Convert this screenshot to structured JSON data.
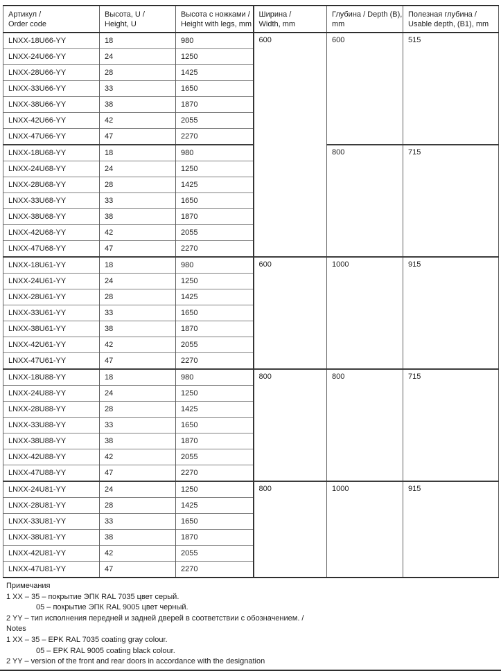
{
  "page": {
    "background_color": "#ffffff",
    "text_color": "#1c1c1c",
    "rule_color": "#2e2e2e"
  },
  "table": {
    "headers": [
      {
        "ru": "Артикул /",
        "en": "Order code"
      },
      {
        "ru": "Высота, U /",
        "en": "Height, U"
      },
      {
        "ru": "Высота с ножками /",
        "en": "Height with legs, mm"
      },
      {
        "ru": "Ширина /",
        "en": "Width, mm"
      },
      {
        "ru": "Глубина / Depth (B),",
        "en": "mm"
      },
      {
        "ru": "Полезная глубина /",
        "en": "Usable depth, (B1), mm"
      }
    ],
    "rows": [
      {
        "code": "LNXX-18U66-YY",
        "u": "18",
        "legs": "980"
      },
      {
        "code": "LNXX-24U66-YY",
        "u": "24",
        "legs": "1250"
      },
      {
        "code": "LNXX-28U66-YY",
        "u": "28",
        "legs": "1425"
      },
      {
        "code": "LNXX-33U66-YY",
        "u": "33",
        "legs": "1650"
      },
      {
        "code": "LNXX-38U66-YY",
        "u": "38",
        "legs": "1870"
      },
      {
        "code": "LNXX-42U66-YY",
        "u": "42",
        "legs": "2055"
      },
      {
        "code": "LNXX-47U66-YY",
        "u": "47",
        "legs": "2270"
      },
      {
        "code": "LNXX-18U68-YY",
        "u": "18",
        "legs": "980"
      },
      {
        "code": "LNXX-24U68-YY",
        "u": "24",
        "legs": "1250"
      },
      {
        "code": "LNXX-28U68-YY",
        "u": "28",
        "legs": "1425"
      },
      {
        "code": "LNXX-33U68-YY",
        "u": "33",
        "legs": "1650"
      },
      {
        "code": "LNXX-38U68-YY",
        "u": "38",
        "legs": "1870"
      },
      {
        "code": "LNXX-42U68-YY",
        "u": "42",
        "legs": "2055"
      },
      {
        "code": "LNXX-47U68-YY",
        "u": "47",
        "legs": "2270"
      },
      {
        "code": "LNXX-18U61-YY",
        "u": "18",
        "legs": "980"
      },
      {
        "code": "LNXX-24U61-YY",
        "u": "24",
        "legs": "1250"
      },
      {
        "code": "LNXX-28U61-YY",
        "u": "28",
        "legs": "1425"
      },
      {
        "code": "LNXX-33U61-YY",
        "u": "33",
        "legs": "1650"
      },
      {
        "code": "LNXX-38U61-YY",
        "u": "38",
        "legs": "1870"
      },
      {
        "code": "LNXX-42U61-YY",
        "u": "42",
        "legs": "2055"
      },
      {
        "code": "LNXX-47U61-YY",
        "u": "47",
        "legs": "2270"
      },
      {
        "code": "LNXX-18U88-YY",
        "u": "18",
        "legs": "980"
      },
      {
        "code": "LNXX-24U88-YY",
        "u": "24",
        "legs": "1250"
      },
      {
        "code": "LNXX-28U88-YY",
        "u": "28",
        "legs": "1425"
      },
      {
        "code": "LNXX-33U88-YY",
        "u": "33",
        "legs": "1650"
      },
      {
        "code": "LNXX-38U88-YY",
        "u": "38",
        "legs": "1870"
      },
      {
        "code": "LNXX-42U88-YY",
        "u": "42",
        "legs": "2055"
      },
      {
        "code": "LNXX-47U88-YY",
        "u": "47",
        "legs": "2270"
      },
      {
        "code": "LNXX-24U81-YY",
        "u": "24",
        "legs": "1250"
      },
      {
        "code": "LNXX-28U81-YY",
        "u": "28",
        "legs": "1425"
      },
      {
        "code": "LNXX-33U81-YY",
        "u": "33",
        "legs": "1650"
      },
      {
        "code": "LNXX-38U81-YY",
        "u": "38",
        "legs": "1870"
      },
      {
        "code": "LNXX-42U81-YY",
        "u": "42",
        "legs": "2055"
      },
      {
        "code": "LNXX-47U81-YY",
        "u": "47",
        "legs": "2270"
      }
    ],
    "width_cells": [
      {
        "value": "600",
        "span": 14
      },
      {
        "value": "600",
        "span": 7
      },
      {
        "value": "800",
        "span": 7
      },
      {
        "value": "800",
        "span": 6
      }
    ],
    "depth_cells": [
      {
        "value": "600",
        "span": 7
      },
      {
        "value": "800",
        "span": 7
      },
      {
        "value": "1000",
        "span": 7
      },
      {
        "value": "800",
        "span": 7
      },
      {
        "value": "1000",
        "span": 6
      }
    ],
    "usable_cells": [
      {
        "value": "515",
        "span": 7
      },
      {
        "value": "715",
        "span": 7
      },
      {
        "value": "915",
        "span": 7
      },
      {
        "value": "715",
        "span": 7
      },
      {
        "value": "915",
        "span": 6
      }
    ]
  },
  "notes": {
    "lines": [
      {
        "text": "Примечания",
        "indent": 0
      },
      {
        "text": "1 XX – 35 – покрытие ЭПК RAL 7035 цвет серый.",
        "indent": 0
      },
      {
        "text": "05 – покрытие ЭПК RAL 9005 цвет черный.",
        "indent": 1
      },
      {
        "text": "2 YY – тип исполнения передней и задней дверей в соответствии с обозначением. /",
        "indent": 0
      },
      {
        "text": "Notes",
        "indent": 0
      },
      {
        "text": "1 XX – 35 – EPK RAL 7035 coating gray colour.",
        "indent": 0
      },
      {
        "text": "05 – EPK RAL 9005 coating black colour.",
        "indent": 1
      },
      {
        "text": "2 YY – version of the front and rear doors in accordance with the designation",
        "indent": 0
      }
    ]
  }
}
